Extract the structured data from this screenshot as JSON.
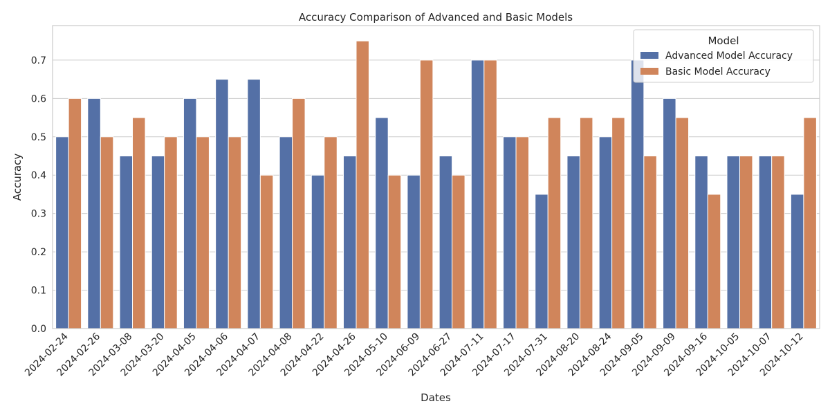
{
  "chart_data": {
    "type": "bar",
    "title": "Accuracy Comparison of Advanced and Basic Models",
    "xlabel": "Dates",
    "ylabel": "Accuracy",
    "ylim": [
      0,
      0.79
    ],
    "yticks": [
      "0.0",
      "0.1",
      "0.2",
      "0.3",
      "0.4",
      "0.5",
      "0.6",
      "0.7"
    ],
    "grid": "horizontal",
    "legend": {
      "title": "Model",
      "placement": "top-right"
    },
    "categories": [
      "2024-02-24",
      "2024-02-26",
      "2024-03-08",
      "2024-03-20",
      "2024-04-05",
      "2024-04-06",
      "2024-04-07",
      "2024-04-08",
      "2024-04-22",
      "2024-04-26",
      "2024-05-10",
      "2024-06-09",
      "2024-06-27",
      "2024-07-11",
      "2024-07-17",
      "2024-07-31",
      "2024-08-20",
      "2024-08-24",
      "2024-09-05",
      "2024-09-09",
      "2024-09-16",
      "2024-10-05",
      "2024-10-07",
      "2024-10-12"
    ],
    "series": [
      {
        "name": "Advanced Model Accuracy",
        "color": "#5470a6",
        "values": [
          0.5,
          0.6,
          0.45,
          0.45,
          0.6,
          0.65,
          0.65,
          0.5,
          0.4,
          0.45,
          0.55,
          0.4,
          0.45,
          0.7,
          0.5,
          0.35,
          0.45,
          0.5,
          0.7,
          0.6,
          0.45,
          0.45,
          0.45,
          0.35
        ]
      },
      {
        "name": "Basic Model Accuracy",
        "color": "#d0855b",
        "values": [
          0.6,
          0.5,
          0.55,
          0.5,
          0.5,
          0.5,
          0.4,
          0.6,
          0.5,
          0.75,
          0.4,
          0.7,
          0.4,
          0.7,
          0.5,
          0.55,
          0.55,
          0.55,
          0.45,
          0.55,
          0.35,
          0.45,
          0.45,
          0.55
        ]
      }
    ]
  }
}
